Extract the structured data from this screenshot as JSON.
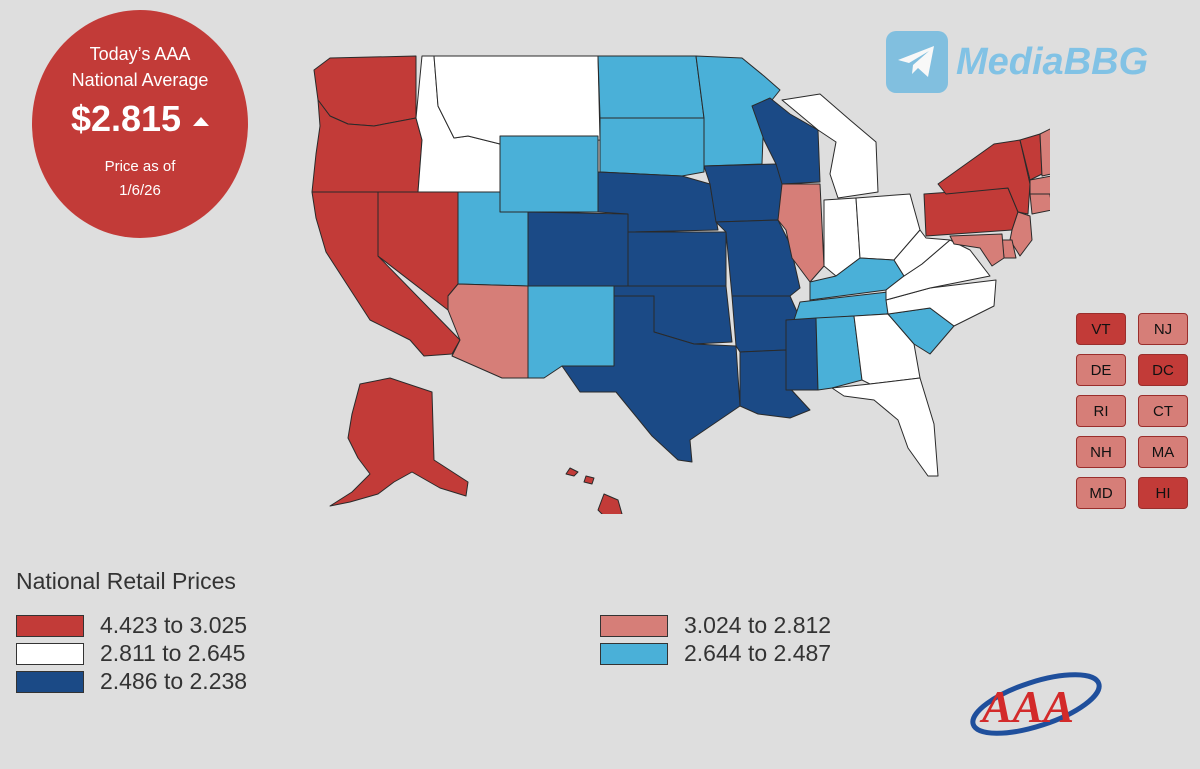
{
  "badge": {
    "line1": "Today’s AAA",
    "line2": "National Average",
    "price": "$2.815",
    "trend_icon": "up-triangle-icon",
    "line3": "Price as of",
    "line4": "1/6/26"
  },
  "watermark": {
    "text": "MediaBBG",
    "icon": "telegram-icon"
  },
  "colors": {
    "high": "#c23b38",
    "upper_mid": "#d67e78",
    "mid": "#ffffff",
    "lower_mid": "#4ab0d8",
    "low": "#1b4a86",
    "background": "#dedede"
  },
  "small_states": [
    {
      "label": "VT",
      "tier": "high"
    },
    {
      "label": "NJ",
      "tier": "upper_mid"
    },
    {
      "label": "DE",
      "tier": "upper_mid"
    },
    {
      "label": "DC",
      "tier": "high"
    },
    {
      "label": "RI",
      "tier": "upper_mid"
    },
    {
      "label": "CT",
      "tier": "upper_mid"
    },
    {
      "label": "NH",
      "tier": "upper_mid"
    },
    {
      "label": "MA",
      "tier": "upper_mid"
    },
    {
      "label": "MD",
      "tier": "upper_mid"
    },
    {
      "label": "HI",
      "tier": "high"
    }
  ],
  "legend": {
    "title": "National Retail Prices",
    "items": [
      {
        "label": "4.423 to 3.025",
        "tier": "high"
      },
      {
        "label": "2.811 to 2.645",
        "tier": "mid"
      },
      {
        "label": "2.486 to 2.238",
        "tier": "low"
      },
      {
        "label": "3.024 to 2.812",
        "tier": "upper_mid"
      },
      {
        "label": "2.644 to 2.487",
        "tier": "lower_mid"
      }
    ]
  },
  "state_tiers": {
    "WA": "high",
    "OR": "high",
    "CA": "high",
    "NV": "high",
    "AK": "high",
    "HI": "high",
    "ID": "mid",
    "MT": "mid",
    "WY": "lower_mid",
    "UT": "lower_mid",
    "NM": "lower_mid",
    "ND": "lower_mid",
    "SD": "lower_mid",
    "MN": "lower_mid",
    "AZ": "upper_mid",
    "CO": "low",
    "NE": "low",
    "KS": "low",
    "OK": "low",
    "TX": "low",
    "IA": "low",
    "MO": "low",
    "AR": "low",
    "LA": "low",
    "MS": "low",
    "WI": "low",
    "IL": "upper_mid",
    "MI": "mid",
    "IN": "mid",
    "OH": "mid",
    "WV": "mid",
    "VA": "mid",
    "NC": "mid",
    "GA": "mid",
    "FL": "mid",
    "KY": "lower_mid",
    "TN": "lower_mid",
    "AL": "lower_mid",
    "SC": "lower_mid",
    "PA": "high",
    "NY": "high",
    "VT": "high",
    "DC": "high",
    "NH": "upper_mid",
    "ME": "upper_mid",
    "MA": "upper_mid",
    "CT": "upper_mid",
    "RI": "upper_mid",
    "NJ": "upper_mid",
    "DE": "upper_mid",
    "MD": "upper_mid"
  },
  "logo": {
    "text": "AAA"
  }
}
